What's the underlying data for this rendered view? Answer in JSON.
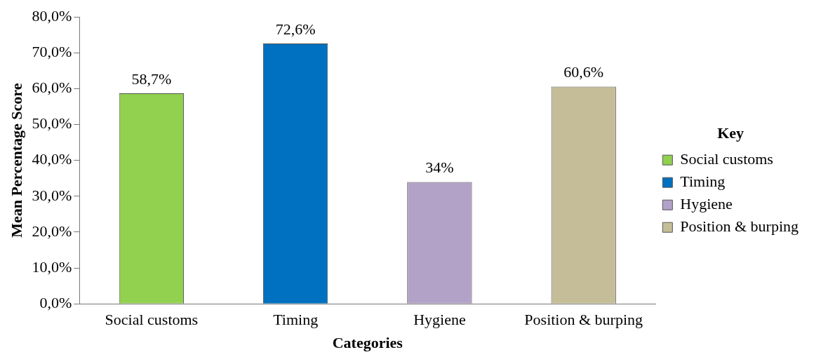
{
  "chart_data": {
    "type": "bar",
    "xlabel": "Categories",
    "ylabel": "Mean Percentage Score",
    "legend_title": "Key",
    "legend": "right",
    "stacked": true,
    "categories": [
      "Social customs",
      "Timing",
      "Hygiene",
      "Position & burping"
    ],
    "series": [
      {
        "name": "Social customs",
        "color": "#92d050",
        "values": [
          58.7,
          null,
          null,
          null
        ],
        "value_labels": [
          "58,7%",
          null,
          null,
          null
        ]
      },
      {
        "name": "Timing",
        "color": "#0070c0",
        "values": [
          null,
          72.6,
          null,
          null
        ],
        "value_labels": [
          null,
          "72,6%",
          null,
          null
        ]
      },
      {
        "name": "Hygiene",
        "color": "#b3a2c7",
        "values": [
          null,
          null,
          34,
          null
        ],
        "value_labels": [
          null,
          null,
          "34%",
          null
        ]
      },
      {
        "name": "Position & burping",
        "color": "#c4bd97",
        "values": [
          null,
          null,
          null,
          60.6
        ],
        "value_labels": [
          null,
          null,
          null,
          "60,6%"
        ]
      }
    ],
    "ylim": [
      0,
      80
    ],
    "yticks": [
      {
        "value": 0,
        "label": "0,0%"
      },
      {
        "value": 10,
        "label": "10,0%"
      },
      {
        "value": 20,
        "label": "20,0%"
      },
      {
        "value": 30,
        "label": "30,0%"
      },
      {
        "value": 40,
        "label": "40,0%"
      },
      {
        "value": 50,
        "label": "50,0%"
      },
      {
        "value": 60,
        "label": "60,0%"
      },
      {
        "value": 70,
        "label": "70,0%"
      },
      {
        "value": 80,
        "label": "80,0%"
      }
    ],
    "grid": false
  }
}
